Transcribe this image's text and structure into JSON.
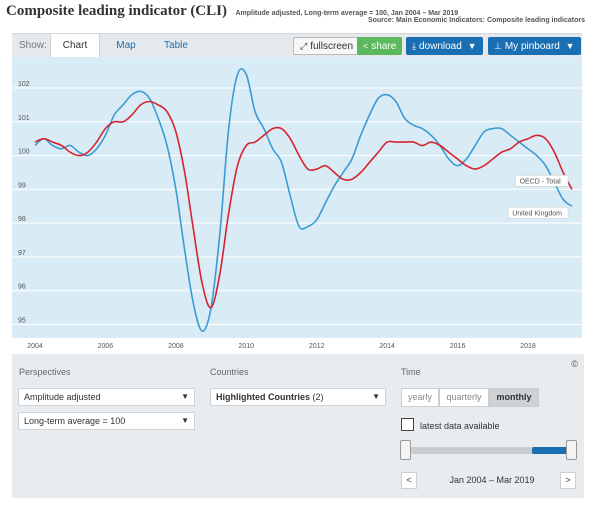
{
  "header": {
    "title": "Composite leading indicator (CLI)",
    "subtitle": "Amplitude adjusted, Long-term average = 100, Jan 2004 – Mar 2019",
    "source": "Source: Main Economic Indicators: Composite leading indicators"
  },
  "toolbar": {
    "show_label": "Show:",
    "tabs": [
      {
        "label": "Chart",
        "active": true
      },
      {
        "label": "Map",
        "active": false
      },
      {
        "label": "Table",
        "active": false
      }
    ],
    "fullscreen_label": "fullscreen",
    "share_label": "share",
    "download_label": "download",
    "pinboard_label": "My pinboard",
    "icons": {
      "fullscreen": "expand-icon",
      "share": "share-icon",
      "download": "download-icon",
      "pinboard": "pin-icon"
    }
  },
  "chart_data": {
    "type": "line",
    "title": "Composite leading indicator (CLI)",
    "xlim": [
      2004.0,
      2019.25
    ],
    "ylim": [
      94.6,
      102.8
    ],
    "x_ticks": [
      2004,
      2006,
      2008,
      2010,
      2012,
      2014,
      2016,
      2018
    ],
    "y_ticks": [
      95,
      96,
      97,
      98,
      99,
      100,
      101,
      102
    ],
    "grid": true,
    "series": [
      {
        "name": "OECD - Total",
        "color": "#d6242f",
        "x": [
          2004.0,
          2004.25,
          2004.5,
          2004.75,
          2005.0,
          2005.25,
          2005.5,
          2005.75,
          2006.0,
          2006.25,
          2006.5,
          2006.75,
          2007.0,
          2007.25,
          2007.5,
          2007.75,
          2008.0,
          2008.25,
          2008.5,
          2008.75,
          2009.0,
          2009.25,
          2009.5,
          2009.75,
          2010.0,
          2010.25,
          2010.5,
          2010.75,
          2011.0,
          2011.25,
          2011.5,
          2011.75,
          2012.0,
          2012.25,
          2012.5,
          2012.75,
          2013.0,
          2013.25,
          2013.5,
          2013.75,
          2014.0,
          2014.25,
          2014.5,
          2014.75,
          2015.0,
          2015.25,
          2015.5,
          2015.75,
          2016.0,
          2016.25,
          2016.5,
          2016.75,
          2017.0,
          2017.25,
          2017.5,
          2017.75,
          2018.0,
          2018.25,
          2018.5,
          2018.75,
          2019.0,
          2019.25
        ],
        "values": [
          100.4,
          100.5,
          100.4,
          100.3,
          100.1,
          100.0,
          100.1,
          100.4,
          100.8,
          101.0,
          101.0,
          101.2,
          101.5,
          101.6,
          101.5,
          101.3,
          100.7,
          99.5,
          97.8,
          96.2,
          95.5,
          96.5,
          98.3,
          99.7,
          100.3,
          100.4,
          100.6,
          100.8,
          100.8,
          100.5,
          100.0,
          99.6,
          99.6,
          99.7,
          99.5,
          99.3,
          99.3,
          99.5,
          99.8,
          100.1,
          100.4,
          100.4,
          100.4,
          100.4,
          100.3,
          100.4,
          100.3,
          100.1,
          99.9,
          99.7,
          99.6,
          99.7,
          99.9,
          100.1,
          100.2,
          100.4,
          100.5,
          100.6,
          100.5,
          100.1,
          99.5,
          99.0
        ]
      },
      {
        "name": "United Kingdom",
        "color": "#3b9bd4",
        "x": [
          2004.0,
          2004.25,
          2004.5,
          2004.75,
          2005.0,
          2005.25,
          2005.5,
          2005.75,
          2006.0,
          2006.25,
          2006.5,
          2006.75,
          2007.0,
          2007.25,
          2007.5,
          2007.75,
          2008.0,
          2008.25,
          2008.5,
          2008.75,
          2009.0,
          2009.25,
          2009.5,
          2009.75,
          2010.0,
          2010.25,
          2010.5,
          2010.75,
          2011.0,
          2011.25,
          2011.5,
          2011.75,
          2012.0,
          2012.25,
          2012.5,
          2012.75,
          2013.0,
          2013.25,
          2013.5,
          2013.75,
          2014.0,
          2014.25,
          2014.5,
          2014.75,
          2015.0,
          2015.25,
          2015.5,
          2015.75,
          2016.0,
          2016.25,
          2016.5,
          2016.75,
          2017.0,
          2017.25,
          2017.5,
          2017.75,
          2018.0,
          2018.25,
          2018.5,
          2018.75,
          2019.0,
          2019.25
        ],
        "values": [
          100.3,
          100.5,
          100.3,
          100.2,
          100.3,
          100.1,
          100.0,
          100.2,
          100.6,
          101.2,
          101.5,
          101.8,
          101.9,
          101.7,
          101.1,
          100.3,
          99.0,
          97.2,
          95.6,
          94.8,
          95.5,
          97.7,
          100.8,
          102.4,
          102.4,
          101.3,
          100.8,
          100.2,
          99.8,
          98.8,
          97.9,
          97.9,
          98.1,
          98.6,
          99.1,
          99.5,
          99.9,
          100.6,
          101.2,
          101.7,
          101.8,
          101.6,
          101.1,
          100.9,
          100.8,
          100.6,
          100.3,
          99.9,
          99.7,
          99.9,
          100.3,
          100.7,
          100.8,
          100.8,
          100.6,
          100.4,
          100.2,
          100.0,
          99.7,
          99.2,
          98.7,
          98.5
        ]
      }
    ]
  },
  "perspectives": {
    "label": "Perspectives",
    "select1": "Amplitude adjusted",
    "select2": "Long-term average = 100"
  },
  "countries": {
    "label": "Countries",
    "selected": "Highlighted Countries",
    "count": "(2)"
  },
  "time": {
    "label": "Time",
    "options": [
      {
        "label": "yearly",
        "active": false
      },
      {
        "label": "quarterly",
        "active": false
      },
      {
        "label": "monthly",
        "active": true
      }
    ],
    "latest_label": "latest data available",
    "range_label": "Jan 2004 – Mar 2019",
    "prev_label": "<",
    "next_label": ">"
  },
  "copyright": "©",
  "dropdown_caret": "▼"
}
